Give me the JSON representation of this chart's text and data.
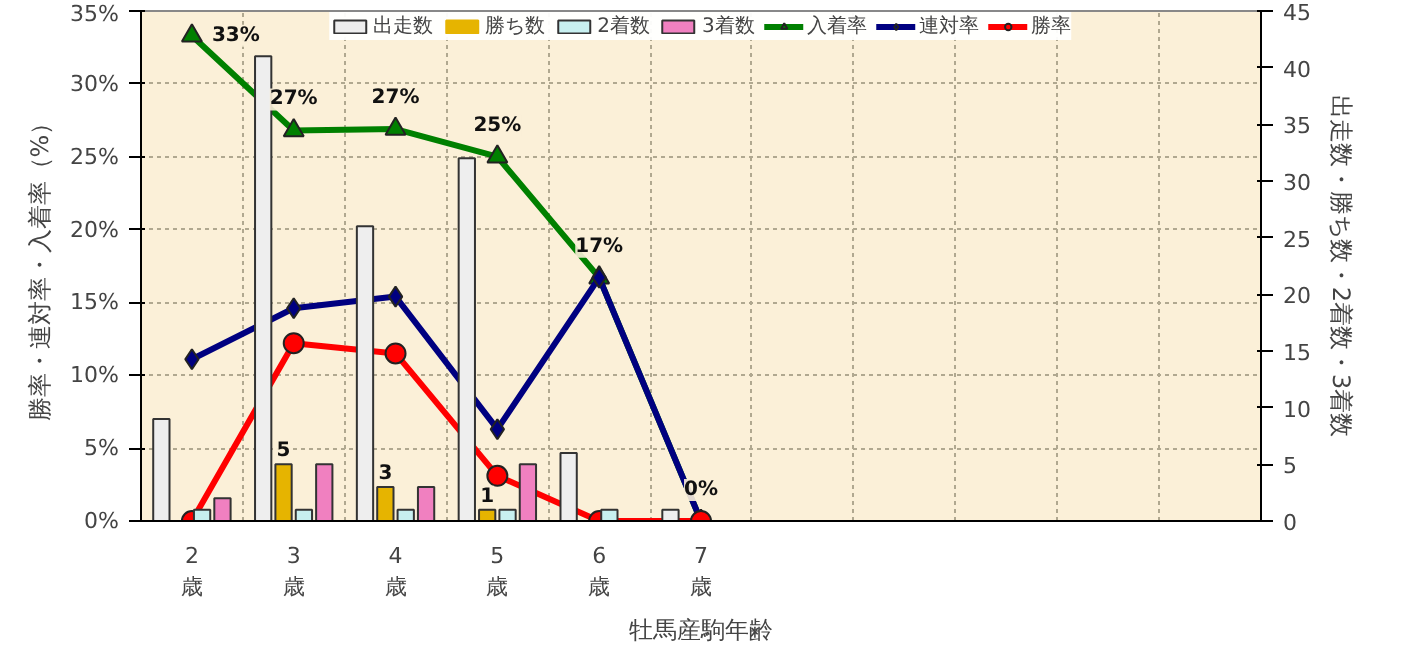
{
  "chart_data": {
    "type": "bar",
    "xlabel": "牡馬産駒年齢",
    "ylabel": "勝率・連対率・入着率（%）",
    "y2label": "出走数・勝ち数・2着数・3着数",
    "categories": [
      "2\n歳",
      "3\n歳",
      "4\n歳",
      "5\n歳",
      "6\n歳",
      "7\n歳",
      null,
      null,
      null,
      null,
      null
    ],
    "series": [
      {
        "name": "出走数",
        "axis": "y2",
        "color": "#eeeeee",
        "values": [
          9,
          41,
          26,
          32,
          6,
          1,
          null,
          null,
          null,
          null,
          null
        ]
      },
      {
        "name": "勝ち数",
        "axis": "y2",
        "color": "#e6b400",
        "values": [
          0,
          5,
          3,
          1,
          0,
          0,
          null,
          null,
          null,
          null,
          null
        ],
        "value_labels": [
          null,
          "5",
          "3",
          "1",
          null,
          null,
          null,
          null,
          null,
          null,
          null
        ]
      },
      {
        "name": "2着数",
        "axis": "y2",
        "color": "#c8f0f0",
        "values": [
          1,
          1,
          1,
          1,
          1,
          0,
          null,
          null,
          null,
          null,
          null
        ]
      },
      {
        "name": "3着数",
        "axis": "y2",
        "color": "#f080c0",
        "values": [
          2,
          5,
          3,
          5,
          0,
          0,
          null,
          null,
          null,
          null,
          null
        ]
      },
      {
        "name": "入着率",
        "type": "line",
        "marker": "triangle",
        "color": "#008000",
        "values": [
          33.3,
          26.8,
          26.9,
          25.0,
          16.7,
          0,
          null,
          null,
          null,
          null,
          null
        ],
        "value_labels": [
          "33%",
          "27%",
          "27%",
          "25%",
          "17%",
          "0%",
          null,
          null,
          null,
          null,
          null
        ]
      },
      {
        "name": "連対率",
        "type": "line",
        "marker": "diamond",
        "color": "#000080",
        "values": [
          11.1,
          14.6,
          15.4,
          6.3,
          16.7,
          0,
          null,
          null,
          null,
          null,
          null
        ]
      },
      {
        "name": "勝率",
        "type": "line",
        "marker": "circle",
        "color": "#ff0000",
        "values": [
          0,
          12.2,
          11.5,
          3.1,
          0,
          0,
          null,
          null,
          null,
          null,
          null
        ]
      }
    ],
    "ylim": [
      0,
      35
    ],
    "yticks": [
      {
        "value": 0,
        "label": "0%"
      },
      {
        "value": 5,
        "label": "5%"
      },
      {
        "value": 10,
        "label": "10%"
      },
      {
        "value": 15,
        "label": "15%"
      },
      {
        "value": 20,
        "label": "20%"
      },
      {
        "value": 25,
        "label": "25%"
      },
      {
        "value": 30,
        "label": "30%"
      },
      {
        "value": 35,
        "label": "35%"
      }
    ],
    "y2lim": [
      0,
      45
    ],
    "y2ticks": [
      0,
      5,
      10,
      15,
      20,
      25,
      30,
      35,
      40,
      45
    ],
    "grid": true,
    "legend": "top"
  }
}
